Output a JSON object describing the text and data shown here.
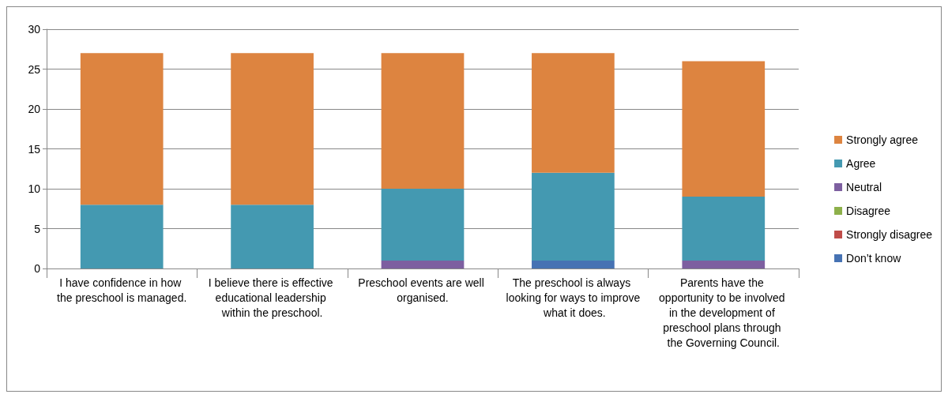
{
  "chart_data": {
    "type": "bar",
    "stacked": true,
    "categories": [
      "I have confidence in how the preschool is managed.",
      "I believe there is effective educational leadership within the preschool.",
      "Preschool events are well organised.",
      "The preschool is always looking for ways to improve what it does.",
      "Parents have the opportunity to be involved in the development of preschool plans through the Governing Council."
    ],
    "series": [
      {
        "name": "Don’t know",
        "color": "#4672b3",
        "values": [
          0,
          0,
          0,
          1,
          0
        ]
      },
      {
        "name": "Strongly disagree",
        "color": "#bf4b48",
        "values": [
          0,
          0,
          0,
          0,
          0
        ]
      },
      {
        "name": "Disagree",
        "color": "#8db04a",
        "values": [
          0,
          0,
          0,
          0,
          0
        ]
      },
      {
        "name": "Neutral",
        "color": "#7d5fa0",
        "values": [
          0,
          0,
          1,
          0,
          1
        ]
      },
      {
        "name": "Agree",
        "color": "#4499b1",
        "values": [
          8,
          8,
          9,
          11,
          8
        ]
      },
      {
        "name": "Strongly agree",
        "color": "#dd8440",
        "values": [
          19,
          19,
          17,
          15,
          17
        ]
      }
    ],
    "ylim": [
      0,
      30
    ],
    "yticks": [
      0,
      5,
      10,
      15,
      20,
      25,
      30
    ],
    "grid": "y",
    "legend": "right"
  }
}
